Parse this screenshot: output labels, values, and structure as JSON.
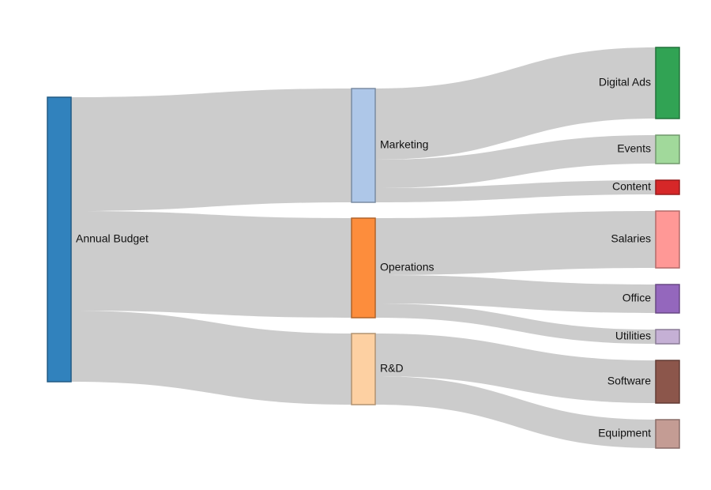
{
  "diagram": {
    "type": "sankey",
    "nodes": [
      {
        "id": "budget",
        "label": "Annual Budget",
        "column": 0,
        "color": "#3182bd"
      },
      {
        "id": "marketing",
        "label": "Marketing",
        "column": 1,
        "color": "#aec7e8"
      },
      {
        "id": "operations",
        "label": "Operations",
        "column": 1,
        "color": "#fd8d3c"
      },
      {
        "id": "rnd",
        "label": "R&D",
        "column": 1,
        "color": "#fdd0a2"
      },
      {
        "id": "digital_ads",
        "label": "Digital Ads",
        "column": 2,
        "color": "#31a354"
      },
      {
        "id": "events",
        "label": "Events",
        "column": 2,
        "color": "#a1d99b"
      },
      {
        "id": "content",
        "label": "Content",
        "column": 2,
        "color": "#d62728"
      },
      {
        "id": "salaries",
        "label": "Salaries",
        "column": 2,
        "color": "#ff9896"
      },
      {
        "id": "office",
        "label": "Office",
        "column": 2,
        "color": "#9467bd"
      },
      {
        "id": "utilities",
        "label": "Utilities",
        "column": 2,
        "color": "#c5b0d5"
      },
      {
        "id": "software",
        "label": "Software",
        "column": 2,
        "color": "#8c564b"
      },
      {
        "id": "equipment",
        "label": "Equipment",
        "column": 2,
        "color": "#c49c94"
      }
    ],
    "links": [
      {
        "source": "budget",
        "target": "marketing",
        "value": 40
      },
      {
        "source": "budget",
        "target": "operations",
        "value": 35
      },
      {
        "source": "budget",
        "target": "rnd",
        "value": 25
      },
      {
        "source": "marketing",
        "target": "digital_ads",
        "value": 25
      },
      {
        "source": "marketing",
        "target": "events",
        "value": 10
      },
      {
        "source": "marketing",
        "target": "content",
        "value": 5
      },
      {
        "source": "operations",
        "target": "salaries",
        "value": 20
      },
      {
        "source": "operations",
        "target": "office",
        "value": 10
      },
      {
        "source": "operations",
        "target": "utilities",
        "value": 5
      },
      {
        "source": "rnd",
        "target": "software",
        "value": 15
      },
      {
        "source": "rnd",
        "target": "equipment",
        "value": 10
      }
    ]
  }
}
